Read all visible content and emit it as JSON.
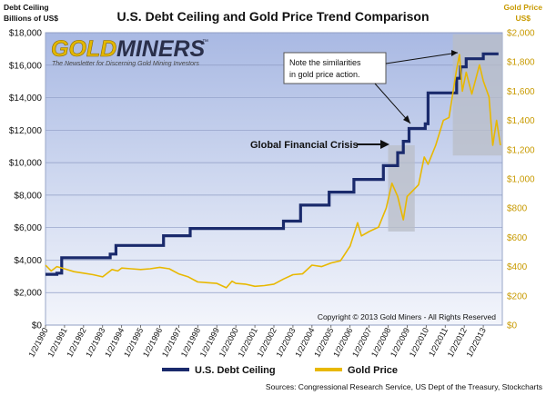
{
  "chart_data": {
    "type": "line",
    "title": "U.S. Debt Ceiling and Gold Price Trend Comparison",
    "y_left_label_line1": "Debt Ceiling",
    "y_left_label_line2": "Billions of US$",
    "y_right_label_line1": "Gold Price",
    "y_right_label_line2": "US$",
    "y_left_range": [
      0,
      18000
    ],
    "y_right_range": [
      0,
      2000
    ],
    "x_range": [
      1990,
      2014
    ],
    "y_left_ticks": [
      "$0",
      "$2,000",
      "$4,000",
      "$6,000",
      "$8,000",
      "$10,000",
      "$12,000",
      "$14,000",
      "$16,000",
      "$18,000"
    ],
    "y_right_ticks": [
      "$0",
      "$200",
      "$400",
      "$600",
      "$800",
      "$1,000",
      "$1,200",
      "$1,400",
      "$1,600",
      "$1,800",
      "$2,000"
    ],
    "x_tick_labels": [
      "1/2/1990",
      "1/2/1991",
      "1/2/1992",
      "1/2/1993",
      "1/2/1994",
      "1/2/1995",
      "1/2/1996",
      "1/2/1997",
      "1/2/1998",
      "1/2/1999",
      "1/2/2000",
      "1/2/2001",
      "1/2/2002",
      "1/2/2003",
      "1/2/2004",
      "1/2/2005",
      "1/2/2006",
      "1/2/2007",
      "1/2/2008",
      "1/2/2009",
      "1/2/2010",
      "1/2/2011",
      "1/2/2012",
      "1/2/2013"
    ],
    "series": [
      {
        "name": "U.S. Debt Ceiling",
        "color": "#1a2a6c",
        "axis": "left",
        "points": [
          [
            1990.0,
            3123
          ],
          [
            1990.6,
            3123
          ],
          [
            1990.6,
            3195
          ],
          [
            1990.85,
            3195
          ],
          [
            1990.85,
            4145
          ],
          [
            1993.4,
            4145
          ],
          [
            1993.4,
            4370
          ],
          [
            1993.7,
            4370
          ],
          [
            1993.7,
            4900
          ],
          [
            1996.2,
            4900
          ],
          [
            1996.2,
            5500
          ],
          [
            1997.6,
            5500
          ],
          [
            1997.6,
            5950
          ],
          [
            2002.5,
            5950
          ],
          [
            2002.5,
            6400
          ],
          [
            2003.4,
            6400
          ],
          [
            2003.4,
            7384
          ],
          [
            2004.9,
            7384
          ],
          [
            2004.9,
            8184
          ],
          [
            2006.2,
            8184
          ],
          [
            2006.2,
            8965
          ],
          [
            2007.75,
            8965
          ],
          [
            2007.75,
            9815
          ],
          [
            2008.5,
            9815
          ],
          [
            2008.5,
            10615
          ],
          [
            2008.8,
            10615
          ],
          [
            2008.8,
            11315
          ],
          [
            2009.1,
            11315
          ],
          [
            2009.1,
            12104
          ],
          [
            2009.95,
            12104
          ],
          [
            2009.95,
            12394
          ],
          [
            2010.1,
            12394
          ],
          [
            2010.1,
            14294
          ],
          [
            2011.6,
            14294
          ],
          [
            2011.6,
            15194
          ],
          [
            2011.8,
            15194
          ],
          [
            2011.8,
            15900
          ],
          [
            2012.1,
            15900
          ],
          [
            2012.1,
            16394
          ],
          [
            2013.0,
            16394
          ],
          [
            2013.0,
            16699
          ],
          [
            2013.8,
            16699
          ]
        ]
      },
      {
        "name": "Gold Price",
        "color": "#e8b800",
        "axis": "right",
        "points": [
          [
            1990.0,
            410
          ],
          [
            1990.3,
            370
          ],
          [
            1990.6,
            400
          ],
          [
            1991.0,
            385
          ],
          [
            1991.5,
            365
          ],
          [
            1992.0,
            355
          ],
          [
            1992.5,
            345
          ],
          [
            1993.0,
            330
          ],
          [
            1993.5,
            380
          ],
          [
            1993.8,
            370
          ],
          [
            1994.0,
            390
          ],
          [
            1994.5,
            385
          ],
          [
            1995.0,
            380
          ],
          [
            1995.5,
            385
          ],
          [
            1996.0,
            395
          ],
          [
            1996.5,
            385
          ],
          [
            1997.0,
            350
          ],
          [
            1997.5,
            330
          ],
          [
            1998.0,
            295
          ],
          [
            1998.5,
            290
          ],
          [
            1999.0,
            285
          ],
          [
            1999.5,
            255
          ],
          [
            1999.8,
            300
          ],
          [
            2000.0,
            285
          ],
          [
            2000.5,
            280
          ],
          [
            2001.0,
            265
          ],
          [
            2001.5,
            270
          ],
          [
            2002.0,
            280
          ],
          [
            2002.5,
            315
          ],
          [
            2003.0,
            345
          ],
          [
            2003.5,
            350
          ],
          [
            2004.0,
            410
          ],
          [
            2004.5,
            400
          ],
          [
            2005.0,
            425
          ],
          [
            2005.5,
            440
          ],
          [
            2006.0,
            540
          ],
          [
            2006.4,
            700
          ],
          [
            2006.6,
            610
          ],
          [
            2007.0,
            640
          ],
          [
            2007.5,
            670
          ],
          [
            2007.9,
            800
          ],
          [
            2008.2,
            970
          ],
          [
            2008.5,
            880
          ],
          [
            2008.8,
            720
          ],
          [
            2009.0,
            880
          ],
          [
            2009.3,
            920
          ],
          [
            2009.6,
            960
          ],
          [
            2009.9,
            1150
          ],
          [
            2010.1,
            1100
          ],
          [
            2010.5,
            1230
          ],
          [
            2010.9,
            1400
          ],
          [
            2011.2,
            1420
          ],
          [
            2011.6,
            1750
          ],
          [
            2011.75,
            1850
          ],
          [
            2011.9,
            1600
          ],
          [
            2012.1,
            1730
          ],
          [
            2012.4,
            1580
          ],
          [
            2012.8,
            1780
          ],
          [
            2013.0,
            1670
          ],
          [
            2013.3,
            1560
          ],
          [
            2013.5,
            1230
          ],
          [
            2013.7,
            1400
          ],
          [
            2013.9,
            1230
          ]
        ]
      }
    ],
    "legend": [
      "U.S. Debt Ceiling",
      "Gold Price"
    ],
    "annotations": {
      "similarity_note_line1": "Note the similarities",
      "similarity_note_line2": "in gold price action.",
      "gfc_label": "Global Financial Crisis",
      "logo_word1": "GOLD",
      "logo_word2": "MINERS",
      "logo_tagline": "The Newsletter for Discerning Gold Mining Investors",
      "copyright": "Copyright © 2013 Gold Miners - All Rights Reserved",
      "sources": "Sources: Congressional Research Service,  US Dept  of the Treasury, Stockcharts"
    },
    "shaded_ranges": [
      {
        "x": [
          2008.0,
          2009.4
        ],
        "gold": [
          640,
          1230
        ]
      },
      {
        "x": [
          2011.4,
          2014.0
        ],
        "gold": [
          1160,
          1990
        ]
      }
    ]
  }
}
